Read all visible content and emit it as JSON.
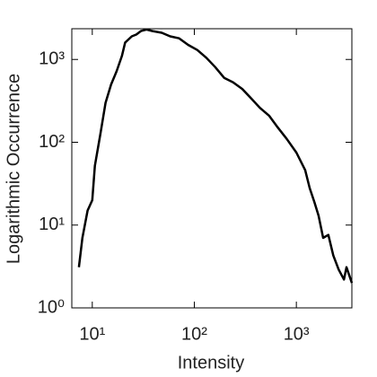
{
  "chart_data": {
    "type": "line",
    "x_label": "Intensity",
    "y_label": "Logarithmic Occurrence",
    "log_x": true,
    "log_y": true,
    "grid": false,
    "xlim": [
      6.3,
      3500
    ],
    "ylim": [
      1,
      2350
    ],
    "xticks": [
      {
        "value": 10,
        "label": "10¹"
      },
      {
        "value": 100,
        "label": "10²"
      },
      {
        "value": 1000,
        "label": "10³"
      }
    ],
    "yticks": [
      {
        "value": 1,
        "label": "10⁰"
      },
      {
        "value": 10,
        "label": "10¹"
      },
      {
        "value": 100,
        "label": "10²"
      },
      {
        "value": 1000,
        "label": "10³"
      }
    ],
    "series": [
      {
        "name": "Occurrence",
        "color": "#000000",
        "x": [
          7.4,
          8,
          9,
          10,
          10.6,
          12,
          13.5,
          15.3,
          17.3,
          19.5,
          21,
          24.4,
          27,
          30,
          34,
          39,
          48,
          58,
          71,
          87,
          107,
          131,
          160,
          196,
          240,
          295,
          360,
          440,
          540,
          660,
          805,
          1000,
          1220,
          1350,
          1500,
          1650,
          1830,
          2060,
          2300,
          2600,
          2930,
          3100,
          3500
        ],
        "values": [
          3.1,
          7,
          15,
          20,
          52,
          125,
          300,
          500,
          720,
          1100,
          1600,
          1900,
          2000,
          2200,
          2300,
          2200,
          2100,
          1900,
          1800,
          1500,
          1300,
          1050,
          810,
          600,
          530,
          440,
          340,
          260,
          210,
          150,
          110,
          75,
          46,
          28,
          19,
          13,
          7,
          7.6,
          4.3,
          2.9,
          2.2,
          3.1,
          2.0
        ]
      }
    ]
  }
}
